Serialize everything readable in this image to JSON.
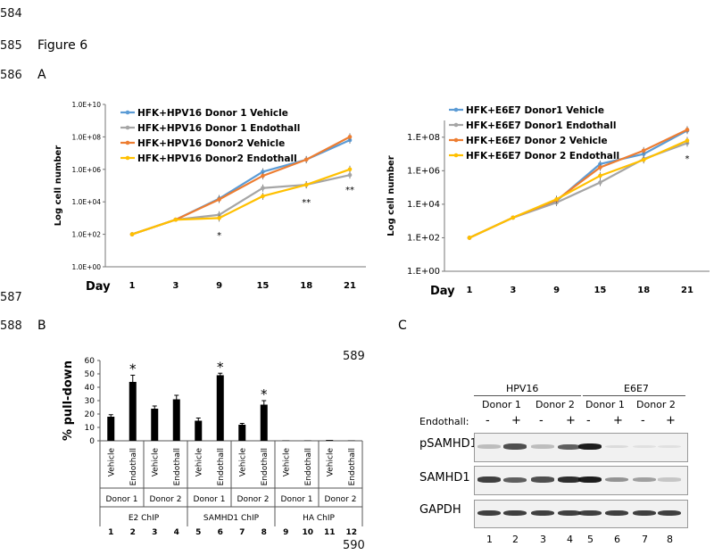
{
  "line_numbers": [
    "584",
    "585",
    "586",
    "587",
    "588",
    "589",
    "590"
  ],
  "figure_title": "Figure 6",
  "panel_letters": {
    "a": "A",
    "b": "B",
    "c": "C"
  },
  "colors": {
    "blue": "#5b9bd5",
    "gray": "#a5a5a5",
    "orange": "#ed7d31",
    "yellow": "#ffc000",
    "bar": "#000000"
  },
  "chart_data": [
    {
      "type": "line",
      "ylabel": "Log cell number",
      "xlabel": "Day",
      "categories": [
        "1",
        "3",
        "9",
        "15",
        "18",
        "21"
      ],
      "y_ticks": [
        "1.0E+00",
        "1.0E+02",
        "1.0E+04",
        "1.0E+06",
        "1.0E+08",
        "1.0E+10"
      ],
      "ylim_log10": [
        0,
        10
      ],
      "series": [
        {
          "name": "HFK+HPV16 Donor 1 Vehicle",
          "color": "blue",
          "log_values": [
            2,
            2.9,
            4.2,
            5.85,
            6.6,
            7.8
          ]
        },
        {
          "name": "HFK+HPV16 Donor 1 Endothall",
          "color": "gray",
          "log_values": [
            2,
            2.9,
            3.2,
            4.85,
            5.05,
            5.65
          ]
        },
        {
          "name": "HFK+HPV16 Donor2 Vehicle",
          "color": "orange",
          "log_values": [
            2,
            2.9,
            4.15,
            5.6,
            6.6,
            8.0
          ]
        },
        {
          "name": "HFK+HPV16 Donor2 Endothall",
          "color": "yellow",
          "log_values": [
            2,
            2.9,
            3.0,
            4.35,
            5.05,
            6.0
          ]
        }
      ],
      "annotations": [
        {
          "category": "9",
          "text": "*"
        },
        {
          "category": "18",
          "text": "**"
        },
        {
          "category": "21",
          "text": "**"
        }
      ]
    },
    {
      "type": "line",
      "ylabel": "Log cell number",
      "xlabel": "Day",
      "categories": [
        "1",
        "3",
        "9",
        "15",
        "18",
        "21"
      ],
      "y_ticks": [
        "1.E+00",
        "1.E+02",
        "1.E+04",
        "1.E+06",
        "1.E+08"
      ],
      "ylim_log10": [
        0,
        9
      ],
      "series": [
        {
          "name": "HFK+E6E7 Donor1 Vehicle",
          "color": "blue",
          "log_values": [
            2,
            3.2,
            4.2,
            6.4,
            7.0,
            8.4
          ]
        },
        {
          "name": "HFK+E6E7 Donor1 Endothall",
          "color": "gray",
          "log_values": [
            2,
            3.2,
            4.1,
            5.3,
            6.7,
            7.65
          ]
        },
        {
          "name": "HFK+E6E7 Donor 2 Vehicle",
          "color": "orange",
          "log_values": [
            2,
            3.2,
            4.25,
            6.2,
            7.2,
            8.45
          ]
        },
        {
          "name": "HFK+E6E7 Donor 2 Endothall",
          "color": "yellow",
          "log_values": [
            2,
            3.2,
            4.3,
            5.7,
            6.65,
            7.8
          ]
        }
      ],
      "annotations": [
        {
          "category": "21",
          "text": "*"
        }
      ]
    },
    {
      "type": "bar",
      "ylabel": "% pull-down",
      "ylim": [
        0,
        60
      ],
      "y_ticks": [
        "0",
        "10",
        "20",
        "30",
        "40",
        "50",
        "60"
      ],
      "bars": [
        {
          "condition": "Vehicle",
          "lane": "1",
          "value": 18,
          "error": 1.5
        },
        {
          "condition": "Endothall",
          "lane": "2",
          "value": 44,
          "error": 5,
          "sig": "*"
        },
        {
          "condition": "Vehicle",
          "lane": "3",
          "value": 24,
          "error": 2
        },
        {
          "condition": "Endothall",
          "lane": "4",
          "value": 31,
          "error": 3
        },
        {
          "condition": "Vehicle",
          "lane": "5",
          "value": 15,
          "error": 2
        },
        {
          "condition": "Endothall",
          "lane": "6",
          "value": 49,
          "error": 1.5,
          "sig": "*"
        },
        {
          "condition": "Vehicle",
          "lane": "7",
          "value": 12,
          "error": 1
        },
        {
          "condition": "Endothall",
          "lane": "8",
          "value": 27,
          "error": 3,
          "sig": "*"
        },
        {
          "condition": "Vehicle",
          "lane": "9",
          "value": 0.3,
          "error": 0
        },
        {
          "condition": "Endothall",
          "lane": "10",
          "value": 0.3,
          "error": 0
        },
        {
          "condition": "Vehicle",
          "lane": "11",
          "value": 0.6,
          "error": 0
        },
        {
          "condition": "Endothall",
          "lane": "12",
          "value": 0.3,
          "error": 0
        }
      ],
      "donor_labels": [
        "Donor 1",
        "Donor 2",
        "Donor 1",
        "Donor 2",
        "Donor 1",
        "Donor 2"
      ],
      "chip_labels": [
        "E2 ChIP",
        "SAMHD1 ChIP",
        "HA ChIP"
      ]
    }
  ],
  "blot": {
    "groups": [
      "HPV16",
      "E6E7"
    ],
    "donors": [
      "Donor 1",
      "Donor 2",
      "Donor 1",
      "Donor 2"
    ],
    "treatment_label": "Endothall:",
    "treatment_signs": [
      "-",
      "+",
      "-",
      "+",
      "-",
      "+",
      "-",
      "+"
    ],
    "rows": [
      {
        "label": "pSAMHD1",
        "intensities": [
          0.35,
          0.8,
          0.35,
          0.75,
          0.95,
          0.15,
          0.1,
          0.1
        ]
      },
      {
        "label": "SAMHD1",
        "intensities": [
          0.85,
          0.75,
          0.8,
          0.9,
          0.95,
          0.55,
          0.5,
          0.3
        ]
      },
      {
        "label": "GAPDH",
        "intensities": [
          0.85,
          0.85,
          0.85,
          0.85,
          0.85,
          0.85,
          0.85,
          0.85
        ]
      }
    ],
    "lanes": [
      "1",
      "2",
      "3",
      "4",
      "5",
      "6",
      "7",
      "8"
    ]
  }
}
